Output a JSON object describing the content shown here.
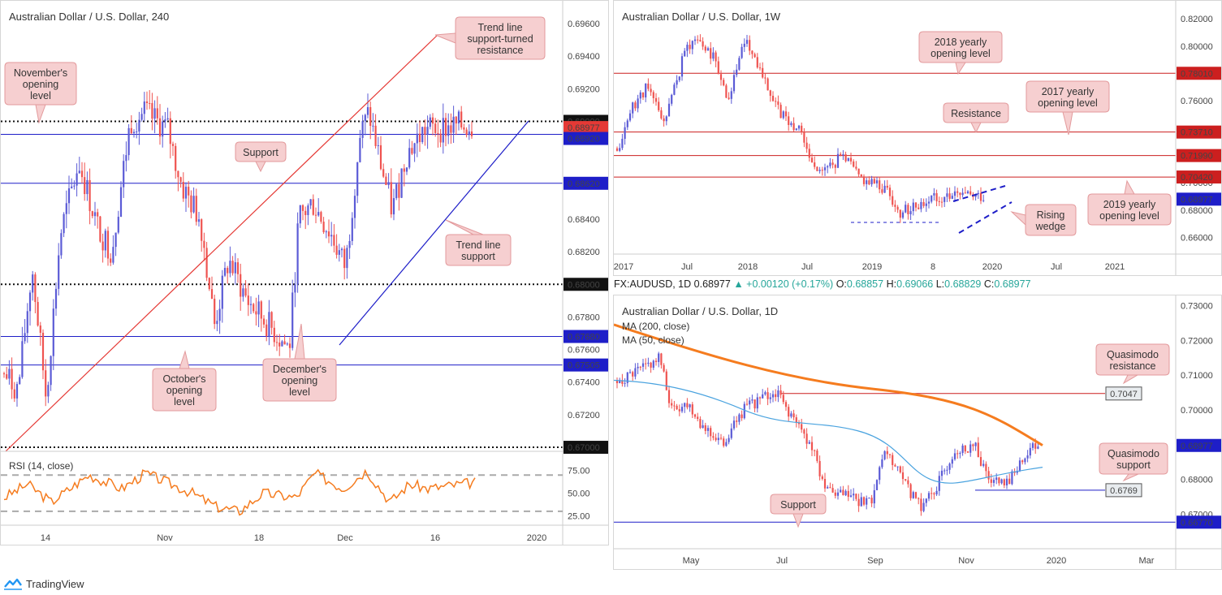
{
  "brand": "TradingView",
  "colors": {
    "up": "#5b5bd6",
    "down": "#ef5350",
    "hline_blue": "#1e1ec8",
    "hline_red": "#cc1f1f",
    "ma200": "#f57c1f",
    "ma50": "#4aa3df",
    "rsi": "#f57c1f",
    "callout_bg": "#f6cfd0",
    "callout_border": "#e39a9c"
  },
  "ticker_header": {
    "symbol": "FX:AUDUSD, 1D",
    "price": "0.68977",
    "change": "+0.00120 (+0.17%)",
    "o_label": "O:",
    "o": "0.68857",
    "h_label": "H:",
    "h": "0.69066",
    "l_label": "L:",
    "l": "0.68829",
    "c_label": "C:",
    "c": "0.68977"
  },
  "chart_data": [
    {
      "type": "candlestick",
      "title": "Australian Dollar / U.S. Dollar, 240",
      "x_ticks": [
        "14",
        "Nov",
        "18",
        "Dec",
        "16",
        "2020"
      ],
      "y_ticks": [
        "0.69600",
        "0.69400",
        "0.69200",
        "0.68400",
        "0.68200",
        "0.67800",
        "0.67600",
        "0.67400",
        "0.67200"
      ],
      "ylim": [
        0.6705,
        0.6965
      ],
      "levels": [
        {
          "value": 0.69,
          "label": "0.69000",
          "style": "dotted-black"
        },
        {
          "value": 0.68977,
          "label": "0.68977",
          "style": "price-red"
        },
        {
          "value": 0.6892,
          "label": "0.68920",
          "style": "blue"
        },
        {
          "value": 0.6862,
          "label": "0.68620",
          "style": "blue"
        },
        {
          "value": 0.68,
          "label": "0.68000",
          "style": "dotted-black"
        },
        {
          "value": 0.6768,
          "label": "0.67680",
          "style": "blue"
        },
        {
          "value": 0.67505,
          "label": "0.67505",
          "style": "blue"
        },
        {
          "value": 0.67,
          "label": "0.67000",
          "style": "dotted-black"
        }
      ],
      "callouts": [
        "November's opening level",
        "Support",
        "Trend line support-turned resistance",
        "Trend line support",
        "October's opening level",
        "December's opening level"
      ],
      "rsi": {
        "title": "RSI (14, close)",
        "ticks": [
          "75.00",
          "50.00",
          "25.00"
        ]
      }
    },
    {
      "type": "candlestick",
      "title": "Australian Dollar / U.S. Dollar, 1W",
      "x_ticks": [
        "2017",
        "Jul",
        "2018",
        "Jul",
        "2019",
        "8",
        "2020",
        "Jul",
        "2021"
      ],
      "y_ticks": [
        "0.82000",
        "0.80000",
        "0.76000",
        "0.70000",
        "0.68000",
        "0.66000"
      ],
      "ylim": [
        0.649,
        0.826
      ],
      "levels": [
        {
          "value": 0.7801,
          "label": "0.78010",
          "style": "red"
        },
        {
          "value": 0.7371,
          "label": "0.73710",
          "style": "red"
        },
        {
          "value": 0.7199,
          "label": "0.71990",
          "style": "red"
        },
        {
          "value": 0.7042,
          "label": "0.70420",
          "style": "red"
        },
        {
          "value": 0.68977,
          "label": "0.68977",
          "style": "price-blue"
        }
      ],
      "callouts": [
        "2018 yearly opening level",
        "2017 yearly opening level",
        "Resistance",
        "2019 yearly opening level",
        "Rising wedge"
      ]
    },
    {
      "type": "candlestick",
      "title": "Australian Dollar / U.S. Dollar, 1D",
      "x_ticks": [
        "May",
        "Jul",
        "Sep",
        "Nov",
        "2020",
        "Mar"
      ],
      "y_ticks": [
        "0.73000",
        "0.72000",
        "0.71000",
        "0.70000",
        "0.68000",
        "0.67000"
      ],
      "ylim": [
        0.6652,
        0.7315
      ],
      "indicators": [
        "MA (200, close)",
        "MA (50, close)"
      ],
      "levels": [
        {
          "value": 0.7047,
          "label": "0.7047",
          "style": "red-box"
        },
        {
          "value": 0.68977,
          "label": "0.68977",
          "style": "price-blue"
        },
        {
          "value": 0.6769,
          "label": "0.6769",
          "style": "blue-box"
        },
        {
          "value": 0.6677,
          "label": "0.66770",
          "style": "blue"
        }
      ],
      "callouts": [
        "Quasimodo resistance",
        "Quasimodo support",
        "Support"
      ]
    }
  ]
}
